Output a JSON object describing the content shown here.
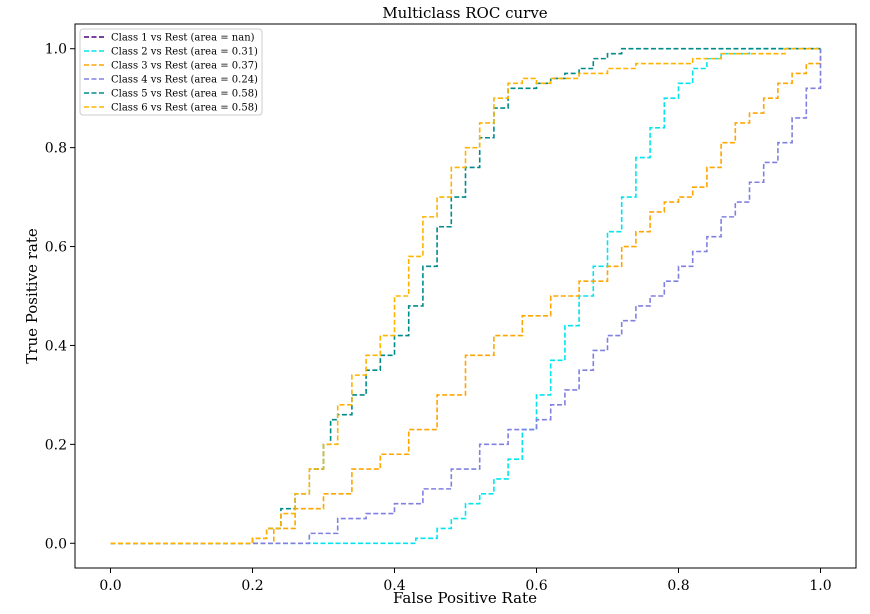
{
  "chart_data": {
    "type": "line",
    "title": "Multiclass ROC curve",
    "xlabel": "False Positive Rate",
    "ylabel": "True Positive rate",
    "xlim": [
      -0.05,
      1.05
    ],
    "ylim": [
      -0.05,
      1.05
    ],
    "xticks": [
      "0.0",
      "0.2",
      "0.4",
      "0.6",
      "0.8",
      "1.0"
    ],
    "yticks": [
      "0.0",
      "0.2",
      "0.4",
      "0.6",
      "0.8",
      "1.0"
    ],
    "grid": false,
    "legend_position": "upper-left",
    "series": [
      {
        "name": "Class 1 vs Rest (area = nan)",
        "color": "#4b0082",
        "x": [],
        "y": []
      },
      {
        "name": "Class 2 vs Rest (area = 0.31)",
        "color": "#00e5ee",
        "x": [
          0.0,
          0.28,
          0.4,
          0.43,
          0.46,
          0.48,
          0.5,
          0.52,
          0.54,
          0.56,
          0.58,
          0.6,
          0.62,
          0.64,
          0.66,
          0.68,
          0.7,
          0.72,
          0.74,
          0.76,
          0.78,
          0.8,
          0.82,
          0.84,
          0.86,
          0.9,
          1.0
        ],
        "y": [
          0.0,
          0.0,
          0.0,
          0.01,
          0.03,
          0.05,
          0.08,
          0.1,
          0.13,
          0.17,
          0.23,
          0.3,
          0.37,
          0.44,
          0.5,
          0.56,
          0.63,
          0.7,
          0.78,
          0.84,
          0.9,
          0.93,
          0.96,
          0.98,
          0.99,
          1.0,
          1.0
        ]
      },
      {
        "name": "Class 3 vs Rest (area = 0.37)",
        "color": "#ffa500",
        "x": [
          0.0,
          0.21,
          0.23,
          0.26,
          0.3,
          0.34,
          0.38,
          0.42,
          0.46,
          0.5,
          0.54,
          0.58,
          0.62,
          0.66,
          0.7,
          0.72,
          0.74,
          0.76,
          0.78,
          0.8,
          0.82,
          0.84,
          0.86,
          0.88,
          0.9,
          0.92,
          0.94,
          0.96,
          0.98,
          1.0
        ],
        "y": [
          0.0,
          0.0,
          0.03,
          0.07,
          0.1,
          0.15,
          0.18,
          0.23,
          0.3,
          0.38,
          0.42,
          0.46,
          0.5,
          0.53,
          0.56,
          0.6,
          0.63,
          0.67,
          0.69,
          0.7,
          0.72,
          0.76,
          0.81,
          0.85,
          0.87,
          0.9,
          0.93,
          0.95,
          0.97,
          1.0
        ]
      },
      {
        "name": "Class 4 vs Rest (area = 0.24)",
        "color": "#8080e0",
        "x": [
          0.0,
          0.22,
          0.28,
          0.32,
          0.36,
          0.4,
          0.44,
          0.48,
          0.52,
          0.56,
          0.6,
          0.62,
          0.64,
          0.66,
          0.68,
          0.7,
          0.72,
          0.74,
          0.76,
          0.78,
          0.8,
          0.82,
          0.84,
          0.86,
          0.88,
          0.9,
          0.92,
          0.94,
          0.96,
          0.98,
          1.0
        ],
        "y": [
          0.0,
          0.0,
          0.02,
          0.05,
          0.06,
          0.08,
          0.11,
          0.15,
          0.2,
          0.23,
          0.25,
          0.28,
          0.31,
          0.35,
          0.39,
          0.42,
          0.45,
          0.48,
          0.5,
          0.53,
          0.56,
          0.59,
          0.62,
          0.66,
          0.69,
          0.73,
          0.77,
          0.81,
          0.86,
          0.92,
          1.0
        ]
      },
      {
        "name": "Class 5 vs Rest (area = 0.58)",
        "color": "#008b8b",
        "x": [
          0.0,
          0.17,
          0.2,
          0.22,
          0.24,
          0.26,
          0.28,
          0.3,
          0.31,
          0.32,
          0.34,
          0.36,
          0.38,
          0.4,
          0.42,
          0.44,
          0.46,
          0.48,
          0.5,
          0.52,
          0.54,
          0.56,
          0.58,
          0.6,
          0.62,
          0.64,
          0.66,
          0.68,
          0.7,
          0.72,
          0.74,
          0.76,
          0.8,
          0.9,
          1.0
        ],
        "y": [
          0.0,
          0.0,
          0.01,
          0.03,
          0.07,
          0.1,
          0.15,
          0.2,
          0.25,
          0.26,
          0.3,
          0.35,
          0.38,
          0.42,
          0.48,
          0.56,
          0.64,
          0.7,
          0.76,
          0.82,
          0.88,
          0.92,
          0.92,
          0.93,
          0.94,
          0.95,
          0.96,
          0.98,
          0.99,
          1.0,
          1.0,
          1.0,
          1.0,
          1.0,
          1.0
        ]
      },
      {
        "name": "Class 6 vs Rest (area = 0.58)",
        "color": "#ffb300",
        "x": [
          0.0,
          0.17,
          0.2,
          0.22,
          0.24,
          0.26,
          0.28,
          0.3,
          0.32,
          0.34,
          0.36,
          0.38,
          0.4,
          0.42,
          0.44,
          0.46,
          0.48,
          0.5,
          0.52,
          0.54,
          0.56,
          0.58,
          0.6,
          0.62,
          0.64,
          0.66,
          0.7,
          0.74,
          0.78,
          0.82,
          0.86,
          0.9,
          0.95,
          1.0
        ],
        "y": [
          0.0,
          0.0,
          0.01,
          0.03,
          0.06,
          0.1,
          0.15,
          0.2,
          0.28,
          0.34,
          0.38,
          0.42,
          0.5,
          0.58,
          0.66,
          0.7,
          0.76,
          0.8,
          0.85,
          0.9,
          0.93,
          0.94,
          0.93,
          0.94,
          0.94,
          0.95,
          0.96,
          0.97,
          0.97,
          0.98,
          0.99,
          0.99,
          1.0,
          1.0
        ]
      }
    ]
  }
}
